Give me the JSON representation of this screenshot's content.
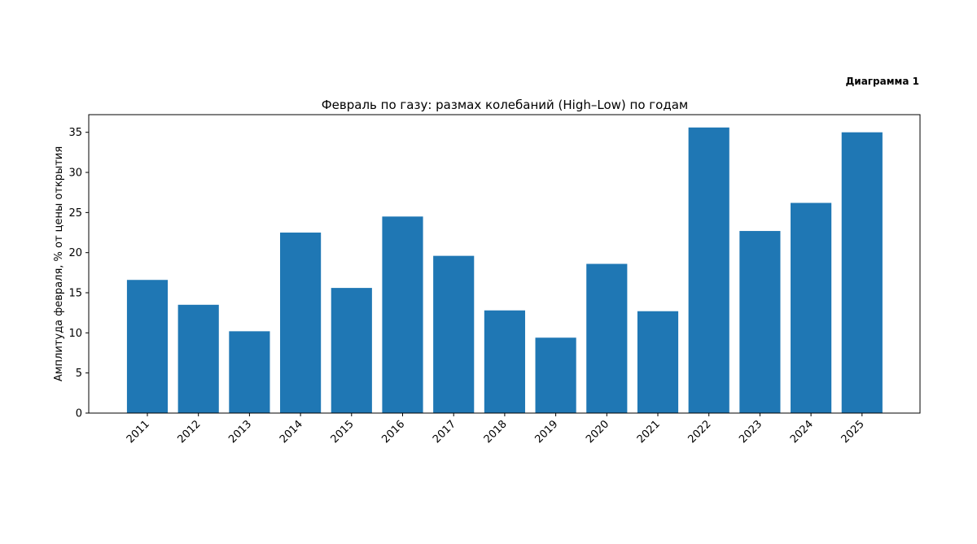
{
  "caption": "Диаграмма 1",
  "chart_data": {
    "type": "bar",
    "title": "Февраль по газу: размах колебаний (High–Low) по годам",
    "xlabel": "",
    "ylabel": "Амплитуда февраля, % от цены открытия",
    "categories": [
      "2011",
      "2012",
      "2013",
      "2014",
      "2015",
      "2016",
      "2017",
      "2018",
      "2019",
      "2020",
      "2021",
      "2022",
      "2023",
      "2024",
      "2025"
    ],
    "values": [
      16.6,
      13.5,
      10.2,
      22.5,
      15.6,
      24.5,
      19.6,
      12.8,
      9.4,
      18.6,
      12.7,
      35.6,
      22.7,
      26.2,
      35.0
    ],
    "ylim": [
      0,
      37.2
    ],
    "yticks": [
      0,
      5,
      10,
      15,
      20,
      25,
      30,
      35
    ],
    "bar_color": "#1f77b4",
    "grid": false,
    "legend": "none"
  }
}
